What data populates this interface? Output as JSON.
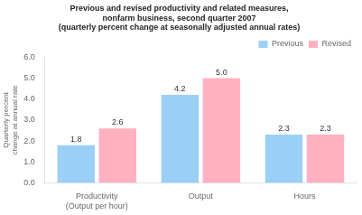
{
  "chart_data": {
    "type": "bar",
    "title": [
      "Previous and revised productivity and related measures,",
      "nonfarm business, second quarter 2007",
      "(quarterly percent change at seasonally adjusted annual rates)"
    ],
    "ylabel": "Quarterly percent change at annual rate",
    "categories": [
      "Productivity\n(Output per hour)",
      "Output",
      "Hours"
    ],
    "series": [
      {
        "name": "Previous",
        "values": [
          1.8,
          4.2,
          2.3
        ],
        "value_labels": [
          "1.8",
          "4.2",
          "2.3"
        ]
      },
      {
        "name": "Revised",
        "values": [
          2.6,
          5.0,
          2.3
        ],
        "value_labels": [
          "2.6",
          "5.0",
          "2.3"
        ]
      }
    ],
    "ylim": [
      0,
      6.0
    ],
    "yticks": [
      {
        "value": 0,
        "label": "0.0"
      },
      {
        "value": 1,
        "label": "1.0"
      },
      {
        "value": 2,
        "label": "2.0"
      },
      {
        "value": 3,
        "label": "3.0"
      },
      {
        "value": 4,
        "label": "4.0"
      },
      {
        "value": 5,
        "label": "5.0"
      },
      {
        "value": 6,
        "label": "6.0"
      }
    ],
    "grid": false,
    "legend": "upper right",
    "data_labels": true
  }
}
